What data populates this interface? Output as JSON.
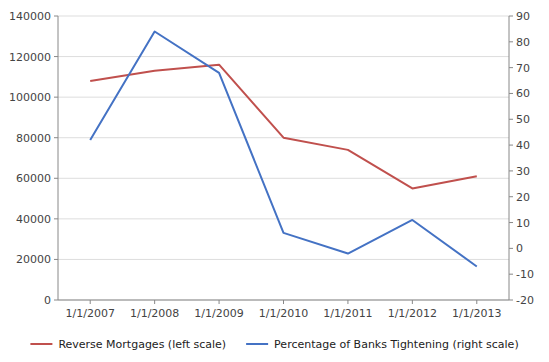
{
  "chart_data": {
    "type": "line",
    "categories": [
      "1/1/2007",
      "1/1/2008",
      "1/1/2009",
      "1/1/2010",
      "1/1/2011",
      "1/1/2012",
      "1/1/2013"
    ],
    "series": [
      {
        "name": "Reverse Mortgages (left scale)",
        "color": "#C0504D",
        "axis": "y",
        "values": [
          108000,
          113000,
          116000,
          80000,
          74000,
          55000,
          61000
        ]
      },
      {
        "name": "Percentage of Banks Tightening (right scale)",
        "color": "#4472C4",
        "axis": "y2",
        "values": [
          42,
          84,
          68,
          6,
          -2,
          11,
          -7
        ]
      }
    ],
    "ylim": [
      0,
      140000
    ],
    "yticks": [
      0,
      20000,
      40000,
      60000,
      80000,
      100000,
      120000,
      140000
    ],
    "y2lim": [
      -20,
      90
    ],
    "y2ticks": [
      -20,
      -10,
      0,
      10,
      20,
      30,
      40,
      50,
      60,
      70,
      80,
      90
    ],
    "grid": true,
    "legend": "bottom"
  }
}
